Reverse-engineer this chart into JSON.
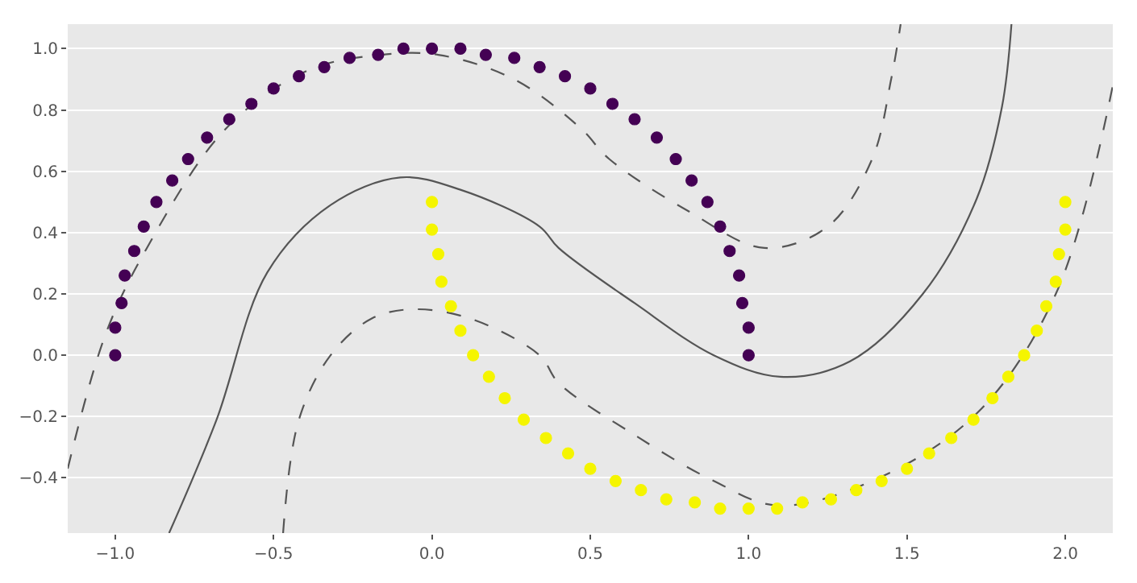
{
  "chart_data": {
    "type": "scatter",
    "xlim": [
      -1.15,
      2.15
    ],
    "ylim": [
      -0.58,
      1.08
    ],
    "xticks": [
      {
        "value": -1.0,
        "label": "−1.0"
      },
      {
        "value": -0.5,
        "label": "−0.5"
      },
      {
        "value": 0.0,
        "label": "0.0"
      },
      {
        "value": 0.5,
        "label": "0.5"
      },
      {
        "value": 1.0,
        "label": "1.0"
      },
      {
        "value": 1.5,
        "label": "1.5"
      },
      {
        "value": 2.0,
        "label": "2.0"
      }
    ],
    "yticks": [
      {
        "value": -0.4,
        "label": "−0.4"
      },
      {
        "value": -0.2,
        "label": "−0.2"
      },
      {
        "value": 0.0,
        "label": "0.0"
      },
      {
        "value": 0.2,
        "label": "0.2"
      },
      {
        "value": 0.4,
        "label": "0.4"
      },
      {
        "value": 0.6,
        "label": "0.6"
      },
      {
        "value": 0.8,
        "label": "0.8"
      },
      {
        "value": 1.0,
        "label": "1.0"
      }
    ],
    "grid": "y",
    "series": [
      {
        "type": "line",
        "color": "#555555",
        "line_style": "solid",
        "marker": "none",
        "x": [
          -0.83,
          -0.68,
          -0.52,
          -0.32,
          -0.1,
          0.09,
          0.34,
          0.4,
          0.64,
          0.89,
          1.1,
          1.32,
          1.55,
          1.72,
          1.8,
          1.83
        ],
        "values": [
          -0.58,
          -0.21,
          0.27,
          0.49,
          0.58,
          0.54,
          0.42,
          0.35,
          0.17,
          0.0,
          -0.07,
          -0.02,
          0.2,
          0.51,
          0.81,
          1.08
        ]
      },
      {
        "type": "line",
        "color": "#555555",
        "line_style": "dashed",
        "marker": "none",
        "x": [
          -1.15,
          -1.03,
          -0.9,
          -0.65,
          -0.39,
          -0.16,
          0.02,
          0.26,
          0.47,
          0.56,
          0.81,
          1.05,
          1.25,
          1.39,
          1.45,
          1.48
        ],
        "values": [
          -0.37,
          0.07,
          0.35,
          0.74,
          0.93,
          0.98,
          0.98,
          0.9,
          0.74,
          0.64,
          0.47,
          0.35,
          0.42,
          0.64,
          0.9,
          1.08
        ]
      },
      {
        "type": "line",
        "color": "#555555",
        "line_style": "dashed",
        "marker": "none",
        "x": [
          -0.47,
          -0.42,
          -0.32,
          -0.19,
          -0.06,
          0.12,
          0.34,
          0.4,
          0.64,
          0.89,
          1.09,
          1.39,
          1.72,
          1.97,
          2.15
        ],
        "values": [
          -0.58,
          -0.21,
          0.0,
          0.12,
          0.15,
          0.12,
          0.0,
          -0.09,
          -0.26,
          -0.41,
          -0.49,
          -0.41,
          -0.19,
          0.2,
          0.88
        ]
      },
      {
        "color": "#440154",
        "marker": "circle",
        "x": [
          -1.0,
          -1.0,
          -0.98,
          -0.97,
          -0.94,
          -0.91,
          -0.87,
          -0.82,
          -0.77,
          -0.71,
          -0.64,
          -0.57,
          -0.5,
          -0.42,
          -0.34,
          -0.26,
          -0.17,
          -0.09,
          0.0,
          0.09,
          0.17,
          0.26,
          0.34,
          0.42,
          0.5,
          0.57,
          0.64,
          0.71,
          0.77,
          0.82,
          0.87,
          0.91,
          0.94,
          0.97,
          0.98,
          1.0,
          1.0
        ],
        "values": [
          0.0,
          0.09,
          0.17,
          0.26,
          0.34,
          0.42,
          0.5,
          0.57,
          0.64,
          0.71,
          0.77,
          0.82,
          0.87,
          0.91,
          0.94,
          0.97,
          0.98,
          1.0,
          1.0,
          1.0,
          0.98,
          0.97,
          0.94,
          0.91,
          0.87,
          0.82,
          0.77,
          0.71,
          0.64,
          0.57,
          0.5,
          0.42,
          0.34,
          0.26,
          0.17,
          0.09,
          0.0
        ]
      },
      {
        "color": "#f5f500",
        "marker": "circle",
        "x": [
          0.0,
          0.0,
          0.02,
          0.03,
          0.06,
          0.09,
          0.13,
          0.18,
          0.23,
          0.29,
          0.36,
          0.43,
          0.5,
          0.58,
          0.66,
          0.74,
          0.83,
          0.91,
          1.0,
          1.09,
          1.17,
          1.26,
          1.34,
          1.42,
          1.5,
          1.57,
          1.64,
          1.71,
          1.77,
          1.82,
          1.87,
          1.91,
          1.94,
          1.97,
          1.98,
          2.0,
          2.0
        ],
        "values": [
          0.5,
          0.41,
          0.33,
          0.24,
          0.16,
          0.08,
          0.0,
          -0.07,
          -0.14,
          -0.21,
          -0.27,
          -0.32,
          -0.37,
          -0.41,
          -0.44,
          -0.47,
          -0.48,
          -0.5,
          -0.5,
          -0.5,
          -0.48,
          -0.47,
          -0.44,
          -0.41,
          -0.37,
          -0.32,
          -0.27,
          -0.21,
          -0.14,
          -0.07,
          0.0,
          0.08,
          0.16,
          0.24,
          0.33,
          0.41,
          0.5
        ]
      }
    ]
  }
}
